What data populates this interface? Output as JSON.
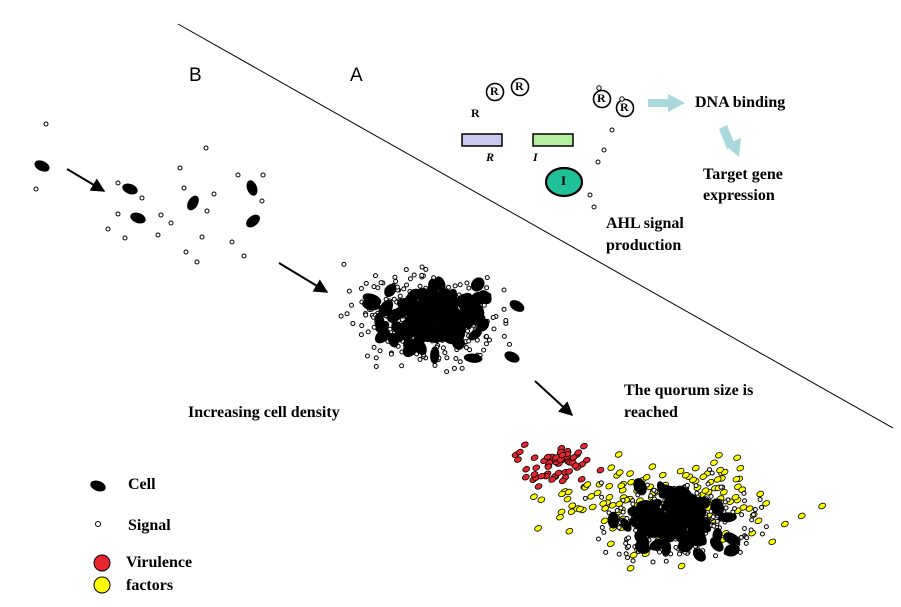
{
  "panels": {
    "a_label": "A",
    "b_label": "B"
  },
  "molecules": {
    "receptor_letter": "R",
    "gene_r": "R",
    "gene_i": "I",
    "synthase_letter": "I"
  },
  "labels": {
    "dna_binding": "DNA binding",
    "target_gene_line1": "Target gene",
    "target_gene_line2": "expression",
    "ahl_line1": "AHL signal",
    "ahl_line2": "production",
    "increasing": "Increasing cell density",
    "quorum_line1": "The quorum size is",
    "quorum_line2": "reached"
  },
  "legend": {
    "cell": "Cell",
    "signal": "Signal",
    "virulence_line1": "Virulence",
    "virulence_line2": "factors"
  },
  "colors": {
    "cell": "#000000",
    "signal_fill": "#ffffff",
    "virulence_red": "#e8252e",
    "virulence_yellow": "#ffff00",
    "gene_r_box": "#c8c8f0",
    "gene_i_box": "#b4f0a0",
    "synthase": "#20c098",
    "arrow_light": "#a8d8dc"
  }
}
